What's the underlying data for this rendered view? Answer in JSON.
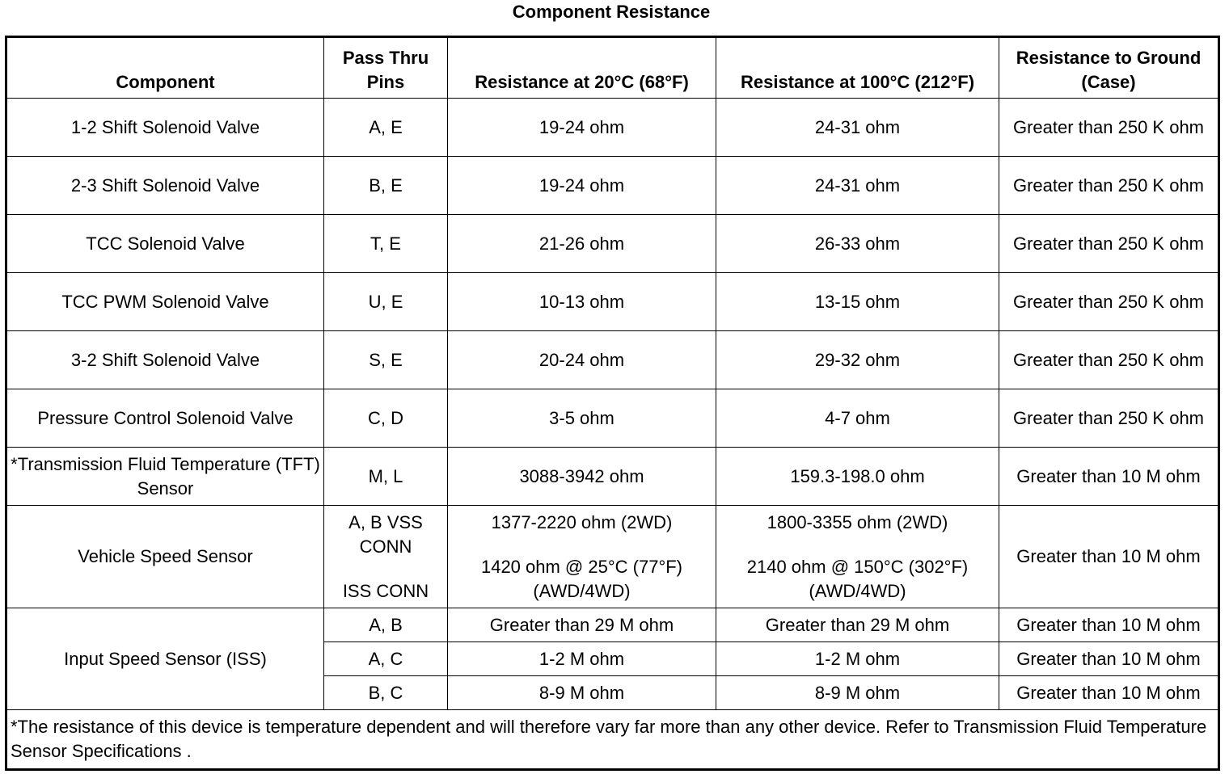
{
  "title": "Component Resistance",
  "table": {
    "headers": [
      "Component",
      "Pass Thru Pins",
      "Resistance at 20°C (68°F)",
      "Resistance at 100°C (212°F)",
      "Resistance to Ground (Case)"
    ],
    "rows": [
      [
        "1-2 Shift Solenoid Valve",
        "A, E",
        "19-24 ohm",
        "24-31 ohm",
        "Greater than 250 K ohm"
      ],
      [
        "2-3 Shift Solenoid Valve",
        "B, E",
        "19-24 ohm",
        "24-31 ohm",
        "Greater than 250 K ohm"
      ],
      [
        "TCC Solenoid Valve",
        "T, E",
        "21-26 ohm",
        "26-33 ohm",
        "Greater than 250 K ohm"
      ],
      [
        "TCC PWM Solenoid Valve",
        "U, E",
        "10-13 ohm",
        "13-15 ohm",
        "Greater than 250 K ohm"
      ],
      [
        "3-2 Shift Solenoid Valve",
        "S, E",
        "20-24 ohm",
        "29-32 ohm",
        "Greater than 250 K ohm"
      ],
      [
        "Pressure Control Solenoid Valve",
        "C, D",
        "3-5 ohm",
        "4-7 ohm",
        "Greater than 250 K ohm"
      ],
      [
        "*Transmission Fluid Temperature (TFT) Sensor",
        "M, L",
        "3088-3942 ohm",
        "159.3-198.0 ohm",
        "Greater than 10 M ohm"
      ],
      [
        "Vehicle Speed Sensor",
        [
          "A, B VSS CONN",
          "ISS CONN"
        ],
        [
          "1377-2220 ohm (2WD)",
          "1420 ohm @ 25°C (77°F) (AWD/4WD)"
        ],
        [
          "1800-3355 ohm (2WD)",
          "2140 ohm @ 150°C (302°F) (AWD/4WD)"
        ],
        "Greater than 10 M ohm"
      ]
    ],
    "group": {
      "component": "Input Speed Sensor (ISS)",
      "rows": [
        [
          "A, B",
          "Greater than 29 M ohm",
          "Greater than 29 M ohm",
          "Greater than 10 M ohm"
        ],
        [
          "A, C",
          "1-2 M ohm",
          "1-2 M ohm",
          "Greater than 10 M ohm"
        ],
        [
          "B, C",
          "8-9 M ohm",
          "8-9 M ohm",
          "Greater than 10 M ohm"
        ]
      ]
    },
    "footnote": "*The resistance of this device is temperature dependent and will therefore vary far more than any other device. Refer to Transmission Fluid Temperature Sensor Specifications ."
  }
}
